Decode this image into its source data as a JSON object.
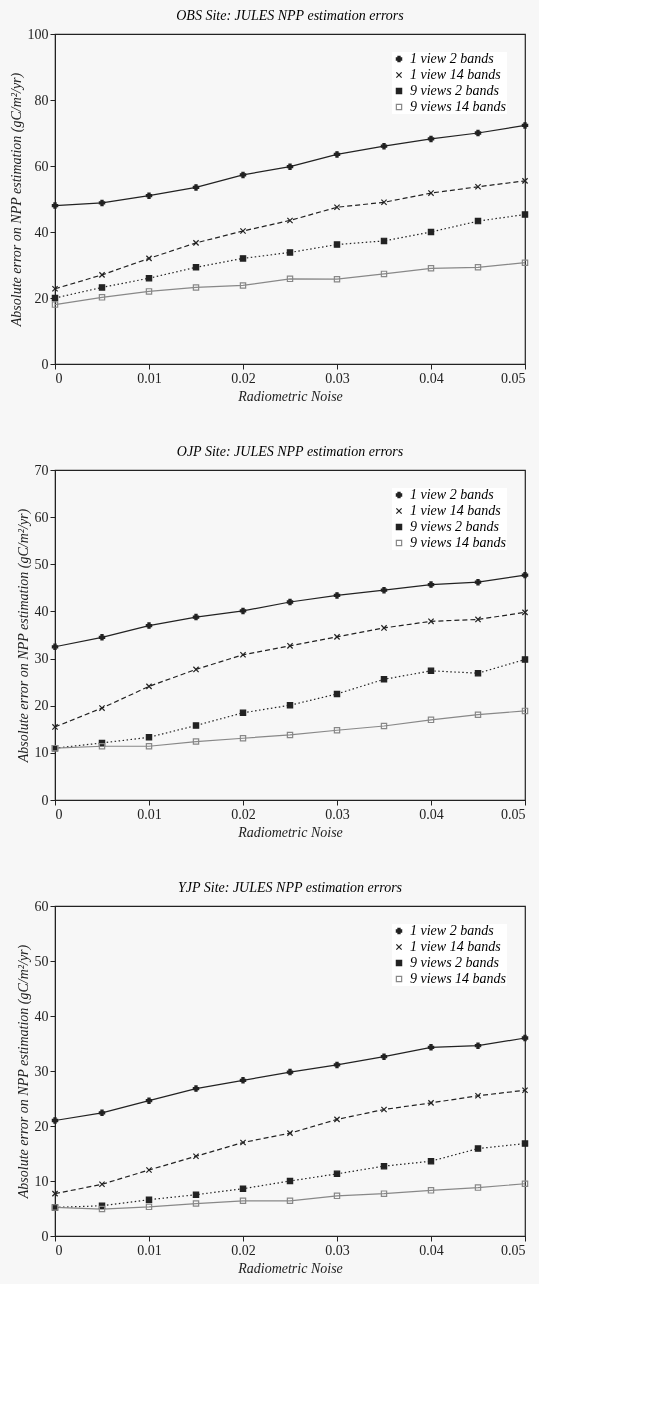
{
  "chart_data": [
    {
      "type": "line",
      "title": "OBS Site: JULES NPP estimation errors",
      "xlabel": "Radiometric Noise",
      "ylabel": "Absolute error on NPP estimation (gC/m²/yr)",
      "x": [
        0,
        0.005,
        0.01,
        0.015,
        0.02,
        0.025,
        0.03,
        0.035,
        0.04,
        0.045,
        0.05
      ],
      "xlim": [
        0,
        0.05
      ],
      "xticks": [
        0,
        0.01,
        0.02,
        0.03,
        0.04,
        0.05
      ],
      "ylim": [
        0,
        100
      ],
      "yticks": [
        0,
        20,
        40,
        60,
        80,
        100
      ],
      "grid": false,
      "legend": "top right",
      "series": [
        {
          "name": "1 view 2 bands",
          "color": "#222222",
          "marker": "plus",
          "line_style": "solid",
          "values": [
            48,
            48.8,
            51,
            53.5,
            57.3,
            59.8,
            63.5,
            66,
            68.2,
            70,
            72.3
          ]
        },
        {
          "name": "1 view 14 bands",
          "color": "#222222",
          "marker": "x",
          "line_style": "dashed",
          "values": [
            22.8,
            27,
            32,
            36.7,
            40.3,
            43.5,
            47.5,
            49,
            51.8,
            53.7,
            55.5
          ]
        },
        {
          "name": "9 views 2 bands",
          "color": "#222222",
          "marker": "square",
          "line_style": "dotted",
          "values": [
            20,
            23.2,
            26,
            29.3,
            32,
            33.8,
            36.2,
            37.3,
            40,
            43.3,
            45.3
          ]
        },
        {
          "name": "9 views 14 bands",
          "color": "#888888",
          "marker": "square-open",
          "line_style": "solid",
          "values": [
            18,
            20.2,
            22,
            23.2,
            23.8,
            25.8,
            25.7,
            27.3,
            29,
            29.3,
            30.7
          ]
        }
      ]
    },
    {
      "type": "line",
      "title": "OJP Site: JULES NPP estimation errors",
      "xlabel": "Radiometric Noise",
      "ylabel": "Absolute error on NPP estimation (gC/m²/yr)",
      "x": [
        0,
        0.005,
        0.01,
        0.015,
        0.02,
        0.025,
        0.03,
        0.035,
        0.04,
        0.045,
        0.05
      ],
      "xlim": [
        0,
        0.05
      ],
      "xticks": [
        0,
        0.01,
        0.02,
        0.03,
        0.04,
        0.05
      ],
      "ylim": [
        0,
        70
      ],
      "yticks": [
        0,
        10,
        20,
        30,
        40,
        50,
        60,
        70
      ],
      "grid": false,
      "legend": "top right",
      "series": [
        {
          "name": "1 view 2 bands",
          "color": "#222222",
          "marker": "plus",
          "line_style": "solid",
          "values": [
            32.5,
            34.5,
            37,
            38.8,
            40.1,
            42,
            43.4,
            44.5,
            45.7,
            46.2,
            47.7
          ]
        },
        {
          "name": "1 view 14 bands",
          "color": "#222222",
          "marker": "x",
          "line_style": "dashed",
          "values": [
            15.5,
            19.5,
            24.1,
            27.7,
            30.8,
            32.7,
            34.6,
            36.5,
            37.9,
            38.3,
            39.8
          ]
        },
        {
          "name": "9 views 2 bands",
          "color": "#222222",
          "marker": "square",
          "line_style": "dotted",
          "values": [
            11,
            12.1,
            13.3,
            15.8,
            18.5,
            20.1,
            22.5,
            25.6,
            27.4,
            26.9,
            29.8
          ]
        },
        {
          "name": "9 views 14 bands",
          "color": "#888888",
          "marker": "square-open",
          "line_style": "solid",
          "values": [
            11,
            11.4,
            11.4,
            12.4,
            13.1,
            13.8,
            14.8,
            15.7,
            17,
            18.1,
            18.9
          ]
        }
      ]
    },
    {
      "type": "line",
      "title": "YJP Site: JULES NPP estimation errors",
      "xlabel": "Radiometric Noise",
      "ylabel": "Absolute error on NPP estimation (gC/m²/yr)",
      "x": [
        0,
        0.005,
        0.01,
        0.015,
        0.02,
        0.025,
        0.03,
        0.035,
        0.04,
        0.045,
        0.05
      ],
      "xlim": [
        0,
        0.05
      ],
      "xticks": [
        0,
        0.01,
        0.02,
        0.03,
        0.04,
        0.05
      ],
      "ylim": [
        0,
        60
      ],
      "yticks": [
        0,
        10,
        20,
        30,
        40,
        50,
        60
      ],
      "grid": false,
      "legend": "top right",
      "series": [
        {
          "name": "1 view 2 bands",
          "color": "#222222",
          "marker": "plus",
          "line_style": "solid",
          "values": [
            21,
            22.4,
            24.6,
            26.8,
            28.3,
            29.8,
            31.1,
            32.6,
            34.3,
            34.6,
            36
          ]
        },
        {
          "name": "1 view 14 bands",
          "color": "#222222",
          "marker": "x",
          "line_style": "dashed",
          "values": [
            7.7,
            9.4,
            12,
            14.5,
            17,
            18.7,
            21.2,
            23,
            24.2,
            25.5,
            26.5
          ]
        },
        {
          "name": "9 views 2 bands",
          "color": "#222222",
          "marker": "square",
          "line_style": "dotted",
          "values": [
            5.2,
            5.5,
            6.6,
            7.5,
            8.6,
            10,
            11.3,
            12.7,
            13.6,
            15.9,
            16.8
          ]
        },
        {
          "name": "9 views 14 bands",
          "color": "#888888",
          "marker": "square-open",
          "line_style": "solid",
          "values": [
            5.2,
            4.9,
            5.3,
            5.9,
            6.4,
            6.4,
            7.3,
            7.7,
            8.3,
            8.8,
            9.5
          ]
        }
      ]
    }
  ]
}
